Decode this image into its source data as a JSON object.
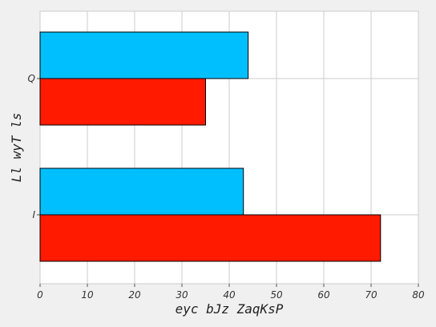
{
  "chart_data": {
    "type": "bar",
    "orientation": "horizontal",
    "title": "",
    "xlabel": "eyc bJz ZaqKsP",
    "ylabel": "Ll wyT ls",
    "categories": [
      "I",
      "Q"
    ],
    "xlim": [
      0,
      80
    ],
    "xticks": [
      0,
      10,
      20,
      30,
      40,
      50,
      60,
      70,
      80
    ],
    "xtick_labels": [
      "0",
      "10",
      "20",
      "30",
      "40",
      "50",
      "60",
      "70",
      "80"
    ],
    "series": [
      {
        "color": "#ff1a00",
        "values": [
          72,
          35
        ]
      },
      {
        "color": "#00bfff",
        "values": [
          43,
          44
        ]
      }
    ],
    "grid": true,
    "legend": "none"
  },
  "colors": {
    "background": "#f0f0f0",
    "plot_area": "#ffffff",
    "grid": "#cccccc",
    "bar_edge": "#000000"
  }
}
